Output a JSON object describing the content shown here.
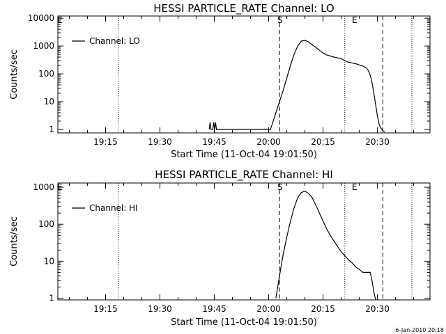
{
  "footer_stamp": "6-Jan-2010 20:18",
  "chart_data": [
    {
      "type": "line",
      "title": "HESSI PARTICLE_RATE Channel: LO",
      "xlabel": "Start Time (11-Oct-04 19:01:50)",
      "ylabel": "Counts/sec",
      "yscale": "log",
      "xlim": [
        "19:01:50",
        "20:44:30"
      ],
      "ylim": [
        0.75,
        12000
      ],
      "x_ticks": [
        "19:15",
        "19:30",
        "19:45",
        "20:00",
        "20:15",
        "20:30"
      ],
      "y_ticks": [
        "1",
        "10",
        "100",
        "1000",
        "10000"
      ],
      "legend": {
        "position": "top-left",
        "entries": [
          "Channel: LO"
        ]
      },
      "markers": {
        "start_label": "S",
        "end_label": "E",
        "left_label": "E"
      },
      "dotted_lines_x": [
        "19:18:30",
        "20:21:00",
        "20:39:30"
      ],
      "dashed_lines_x": [
        "20:03:00",
        "20:31:30"
      ],
      "series": [
        {
          "name": "Channel: LO",
          "x": [
            "19:43:35",
            "19:43:50",
            "19:44:05",
            "19:44:35",
            "19:44:50",
            "19:45:05",
            "19:45:20",
            "19:45:35",
            "20:00:30",
            "20:02:00",
            "20:03:00",
            "20:04:00",
            "20:05:00",
            "20:06:00",
            "20:07:00",
            "20:08:00",
            "20:09:00",
            "20:10:00",
            "20:11:00",
            "20:12:00",
            "20:13:00",
            "20:14:00",
            "20:15:00",
            "20:16:00",
            "20:18:00",
            "20:20:00",
            "20:21:00",
            "20:22:00",
            "20:24:00",
            "20:25:00",
            "20:26:00",
            "20:27:00",
            "20:27:30",
            "20:28:00",
            "20:28:30",
            "20:29:00",
            "20:29:30",
            "20:30:00",
            "20:30:30",
            "20:31:00",
            "20:31:30",
            "20:32:00"
          ],
          "y": [
            1,
            1.8,
            1,
            1,
            1.8,
            1,
            1.8,
            1,
            1,
            4,
            10,
            25,
            70,
            200,
            500,
            1000,
            1500,
            1600,
            1400,
            1100,
            900,
            700,
            560,
            480,
            400,
            350,
            300,
            260,
            230,
            210,
            190,
            160,
            130,
            90,
            50,
            20,
            8,
            3,
            1.5,
            1.1,
            0.9,
            0.8
          ]
        }
      ]
    },
    {
      "type": "line",
      "title": "HESSI PARTICLE_RATE Channel: HI",
      "xlabel": "Start Time (11-Oct-04 19:01:50)",
      "ylabel": "Counts/sec",
      "yscale": "log",
      "xlim": [
        "19:01:50",
        "20:44:30"
      ],
      "ylim": [
        0.9,
        1300
      ],
      "x_ticks": [
        "19:15",
        "19:30",
        "19:45",
        "20:00",
        "20:15",
        "20:30"
      ],
      "y_ticks": [
        "1",
        "10",
        "100",
        "1000"
      ],
      "legend": {
        "position": "top-left",
        "entries": [
          "Channel: HI"
        ]
      },
      "markers": {
        "start_label": "S",
        "end_label": "E",
        "left_label": "E"
      },
      "dotted_lines_x": [
        "19:18:30",
        "20:21:00",
        "20:39:30"
      ],
      "dashed_lines_x": [
        "20:03:00",
        "20:31:30"
      ],
      "series": [
        {
          "name": "Channel: HI",
          "x": [
            "20:02:00",
            "20:02:30",
            "20:03:00",
            "20:03:30",
            "20:04:00",
            "20:05:00",
            "20:06:00",
            "20:07:00",
            "20:08:00",
            "20:09:00",
            "20:10:00",
            "20:11:00",
            "20:12:00",
            "20:13:00",
            "20:14:00",
            "20:15:00",
            "20:16:00",
            "20:17:00",
            "20:18:00",
            "20:19:00",
            "20:20:00",
            "20:21:00",
            "20:22:00",
            "20:23:00",
            "20:24:00",
            "20:25:00",
            "20:26:00",
            "20:27:00",
            "20:28:00",
            "20:28:30",
            "20:29:00",
            "20:29:30"
          ],
          "y": [
            1,
            2,
            4,
            8,
            15,
            45,
            120,
            280,
            520,
            720,
            780,
            680,
            520,
            330,
            200,
            120,
            75,
            50,
            35,
            25,
            18,
            14,
            11,
            9,
            7,
            6,
            5,
            5,
            5,
            3,
            1.5,
            0.9
          ]
        }
      ]
    }
  ]
}
